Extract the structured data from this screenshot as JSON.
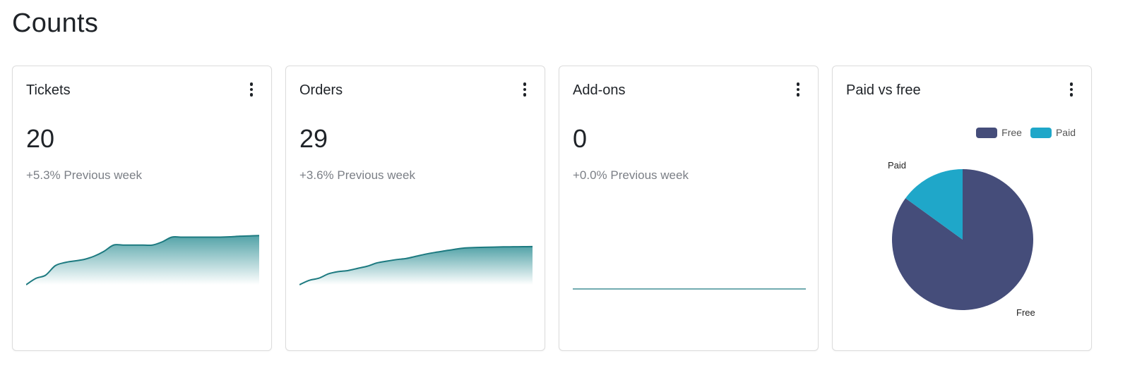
{
  "page": {
    "title": "Counts"
  },
  "menu_icon": "more-vertical-icon",
  "cards": [
    {
      "title": "Tickets",
      "value": "20",
      "change": "+5.3% Previous week"
    },
    {
      "title": "Orders",
      "value": "29",
      "change": "+3.6% Previous week"
    },
    {
      "title": "Add-ons",
      "value": "0",
      "change": "+0.0% Previous week"
    },
    {
      "title": "Paid vs free"
    }
  ],
  "colors": {
    "spark_line": "#1d7a80",
    "spark_fill_top": "#4a9ea3",
    "free": "#454d7a",
    "paid": "#1fa7c9"
  },
  "chart_data": [
    {
      "type": "area",
      "title": "Tickets",
      "x": [
        0,
        1,
        2,
        3,
        4,
        5,
        6,
        7,
        8,
        9,
        10,
        11,
        12,
        13,
        14,
        15,
        16,
        17,
        18,
        19,
        20,
        21,
        22,
        23,
        24
      ],
      "values": [
        0,
        2,
        3,
        6,
        7,
        7.5,
        8,
        9,
        10.5,
        12.5,
        12.5,
        12.5,
        12.5,
        12.5,
        13.5,
        15,
        15,
        15,
        15,
        15,
        15,
        15.1,
        15.3,
        15.4,
        15.5
      ],
      "ylim": [
        0,
        20
      ]
    },
    {
      "type": "area",
      "title": "Orders",
      "x": [
        0,
        1,
        2,
        3,
        4,
        5,
        6,
        7,
        8,
        9,
        10,
        11,
        12,
        13,
        14,
        15,
        16,
        17,
        18,
        19,
        20,
        21,
        22,
        23,
        24
      ],
      "values": [
        0,
        2,
        3,
        5,
        6,
        6.5,
        7.5,
        8.5,
        10,
        10.8,
        11.5,
        12,
        13,
        14,
        14.8,
        15.5,
        16.2,
        16.8,
        17,
        17.1,
        17.2,
        17.3,
        17.35,
        17.4,
        17.45
      ],
      "ylim": [
        0,
        29
      ]
    },
    {
      "type": "line",
      "title": "Add-ons",
      "x": [
        0,
        1,
        2,
        3,
        4,
        5,
        6,
        7,
        8,
        9,
        10,
        11,
        12,
        13,
        14,
        15,
        16,
        17,
        18,
        19,
        20,
        21,
        22,
        23,
        24
      ],
      "values": [
        0,
        0,
        0,
        0,
        0,
        0,
        0,
        0,
        0,
        0,
        0,
        0,
        0,
        0,
        0,
        0,
        0,
        0,
        0,
        0,
        0,
        0,
        0,
        0,
        0
      ],
      "ylim": [
        0,
        1
      ]
    },
    {
      "type": "pie",
      "title": "Paid vs free",
      "categories": [
        "Free",
        "Paid"
      ],
      "values": [
        85,
        15
      ],
      "legend": "top-right"
    }
  ]
}
